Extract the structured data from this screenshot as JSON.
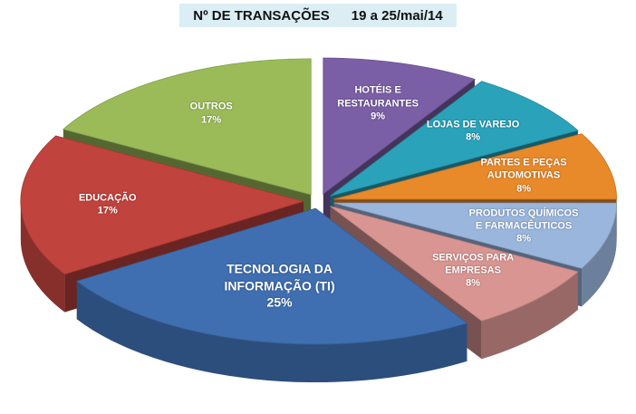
{
  "chart_data": {
    "type": "pie",
    "title": "Nº DE TRANSAÇÕES",
    "subtitle": "19 a 25/mai/14",
    "categories": [
      "HOTÉIS E RESTAURANTES",
      "LOJAS DE VAREJO",
      "PARTES E PEÇAS AUTOMOTIVAS",
      "PRODUTOS QUÍMICOS E FARMACÊUTICOS",
      "SERVIÇOS PARA EMPRESAS",
      "TECNOLOGIA DA INFORMAÇÃO (TI)",
      "EDUCAÇÃO",
      "OUTROS"
    ],
    "values": [
      9,
      8,
      8,
      8,
      8,
      25,
      17,
      17
    ],
    "value_labels": [
      "9%",
      "8%",
      "8%",
      "8%",
      "8%",
      "25%",
      "17%",
      "17%"
    ],
    "colors": [
      "#7b5fa6",
      "#2aa2ba",
      "#e8892a",
      "#9ab6dd",
      "#d99592",
      "#3f6fb1",
      "#c0433d",
      "#9bbb59"
    ]
  }
}
